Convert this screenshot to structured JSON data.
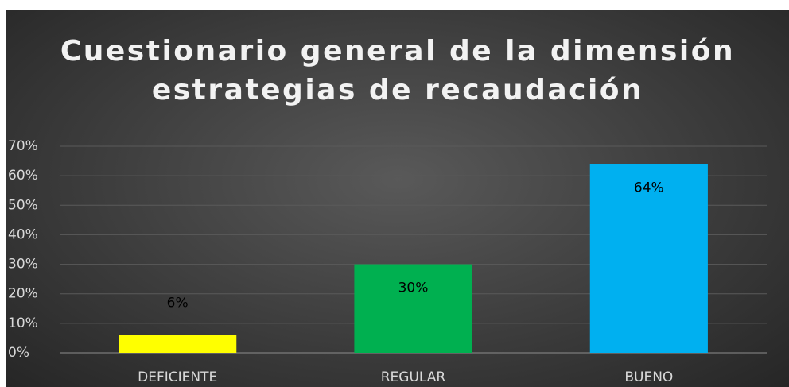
{
  "chart_data": {
    "type": "bar",
    "title": "Cuestionario general de la dimensión estrategias de recaudación",
    "categories": [
      "DEFICIENTE",
      "REGULAR",
      "BUENO"
    ],
    "values": [
      6,
      30,
      64
    ],
    "value_labels": [
      "6%",
      "30%",
      "64%"
    ],
    "colors": [
      "#ffff00",
      "#00b050",
      "#00b0f0"
    ],
    "ylim": [
      0,
      70
    ],
    "yticks": [
      {
        "value": 0,
        "label": "0%"
      },
      {
        "value": 10,
        "label": "10%"
      },
      {
        "value": 20,
        "label": "20%"
      },
      {
        "value": 30,
        "label": "30%"
      },
      {
        "value": 40,
        "label": "40%"
      },
      {
        "value": 50,
        "label": "50%"
      },
      {
        "value": 60,
        "label": "60%"
      },
      {
        "value": 70,
        "label": "70%"
      }
    ],
    "grid": true
  }
}
